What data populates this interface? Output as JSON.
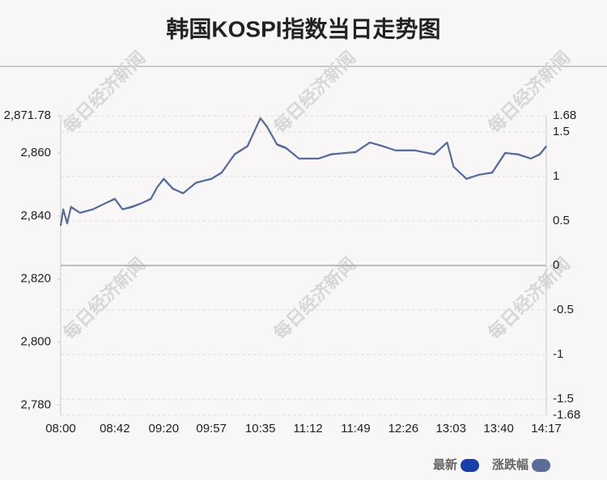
{
  "chart_data": {
    "type": "line",
    "title": "韩国KOSPI指数当日走势图",
    "watermark": "每日经济新闻",
    "x": [
      "08:00",
      "08:02",
      "08:05",
      "08:08",
      "08:15",
      "08:25",
      "08:35",
      "08:42",
      "08:48",
      "08:55",
      "09:03",
      "09:10",
      "09:15",
      "09:20",
      "09:27",
      "09:35",
      "09:45",
      "09:57",
      "10:05",
      "10:15",
      "10:25",
      "10:35",
      "10:40",
      "10:48",
      "10:55",
      "11:05",
      "11:20",
      "11:30",
      "11:49",
      "12:00",
      "12:10",
      "12:20",
      "12:35",
      "12:50",
      "13:00",
      "13:05",
      "13:15",
      "13:25",
      "13:35",
      "13:45",
      "13:55",
      "14:05",
      "14:12",
      "14:17"
    ],
    "xticks": [
      "08:00",
      "08:42",
      "09:20",
      "09:57",
      "10:35",
      "11:12",
      "11:49",
      "12:26",
      "13:03",
      "13:40",
      "14:17"
    ],
    "series": [
      {
        "name": "最新",
        "color": "#1a3ea8",
        "values": [
          2836.9,
          2842.1,
          2837.7,
          2842.8,
          2841.0,
          2842.1,
          2844.1,
          2845.4,
          2842.1,
          2842.8,
          2844.1,
          2845.4,
          2849.2,
          2851.8,
          2848.7,
          2847.2,
          2850.5,
          2851.8,
          2853.8,
          2859.5,
          2862.1,
          2871.0,
          2868.5,
          2862.6,
          2861.5,
          2858.2,
          2858.2,
          2859.5,
          2860.3,
          2863.3,
          2862.1,
          2860.8,
          2860.8,
          2859.5,
          2863.3,
          2855.6,
          2851.8,
          2853.1,
          2853.8,
          2860.0,
          2859.5,
          2858.2,
          2859.5,
          2862.1
        ]
      },
      {
        "name": "涨跌幅",
        "color": "#5a6d98",
        "axis": "y2",
        "values": [
          0.45,
          0.63,
          0.47,
          0.66,
          0.59,
          0.63,
          0.7,
          0.75,
          0.63,
          0.66,
          0.7,
          0.75,
          0.88,
          0.97,
          0.86,
          0.81,
          0.93,
          0.97,
          1.04,
          1.25,
          1.34,
          1.65,
          1.56,
          1.36,
          1.32,
          1.2,
          1.2,
          1.25,
          1.27,
          1.38,
          1.34,
          1.29,
          1.29,
          1.25,
          1.38,
          1.11,
          0.97,
          1.02,
          1.04,
          1.26,
          1.25,
          1.2,
          1.25,
          1.34
        ]
      }
    ],
    "ylim": [
      2776.82,
      2871.78
    ],
    "yticks": [
      {
        "value": 2871.78,
        "label": "2,871.78"
      },
      {
        "value": 2860,
        "label": "2,860"
      },
      {
        "value": 2840,
        "label": "2,840"
      },
      {
        "value": 2820,
        "label": "2,820"
      },
      {
        "value": 2800,
        "label": "2,800"
      },
      {
        "value": 2780,
        "label": "2,780"
      }
    ],
    "y2lim": [
      -1.68,
      1.68
    ],
    "y2ticks": [
      1.68,
      1.5,
      1,
      0.5,
      0,
      -0.5,
      -1,
      -1.5,
      -1.68
    ],
    "grid": true
  }
}
